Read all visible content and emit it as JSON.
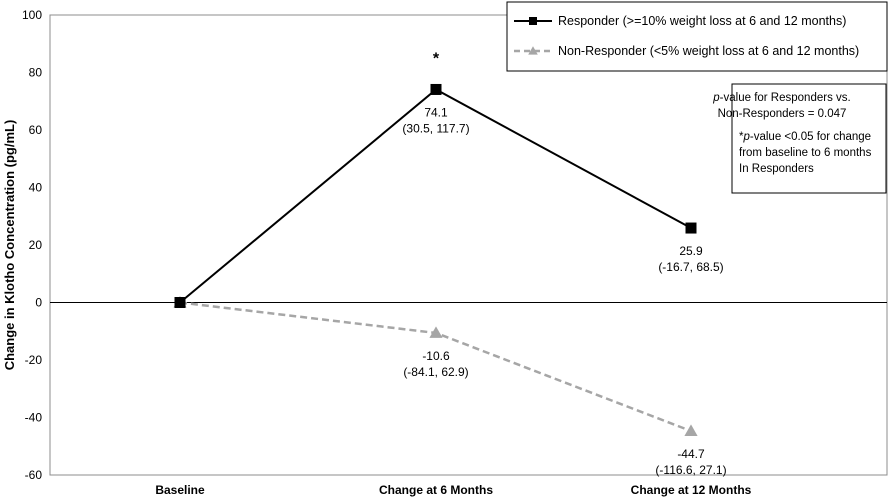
{
  "chart_data": {
    "type": "line",
    "categories": [
      "Baseline",
      "Change at 6 Months",
      "Change at 12 Months"
    ],
    "ylabel": "Change in Klotho Concentration (pg/mL)",
    "ylim": [
      -60,
      100
    ],
    "yticks": [
      -60,
      -40,
      -20,
      0,
      20,
      40,
      60,
      80,
      100
    ],
    "legend_position": "top-right",
    "series": [
      {
        "name": "Responder (>=10% weight loss at 6 and 12 months)",
        "values": [
          0,
          74.1,
          25.9
        ],
        "color": "#000000",
        "style": "solid",
        "marker": "square",
        "labels": [
          null,
          {
            "value": "74.1",
            "ci": "(30.5, 117.7)"
          },
          {
            "value": "25.9",
            "ci": "(-16.7, 68.5)"
          }
        ]
      },
      {
        "name": "Non-Responder (<5% weight loss at 6 and 12 months)",
        "values": [
          0,
          -10.6,
          -44.7
        ],
        "color": "#a6a6a6",
        "style": "dashed",
        "marker": "triangle",
        "labels": [
          null,
          {
            "value": "-10.6",
            "ci": "(-84.1, 62.9)"
          },
          {
            "value": "-44.7",
            "ci": "(-116.6, 27.1)"
          }
        ]
      }
    ],
    "significance_marker": {
      "symbol": "*",
      "category": "Change at 6 Months",
      "series": 0
    },
    "note": {
      "line1_italic": "p",
      "line1_rest": "-value for Responders vs.",
      "line2": "Non-Responders = 0.047",
      "line3_prefix": "*",
      "line3_italic": "p",
      "line3_rest": "-value <0.05 for change",
      "line4": "from baseline to 6 months",
      "line5": "In Responders"
    }
  }
}
